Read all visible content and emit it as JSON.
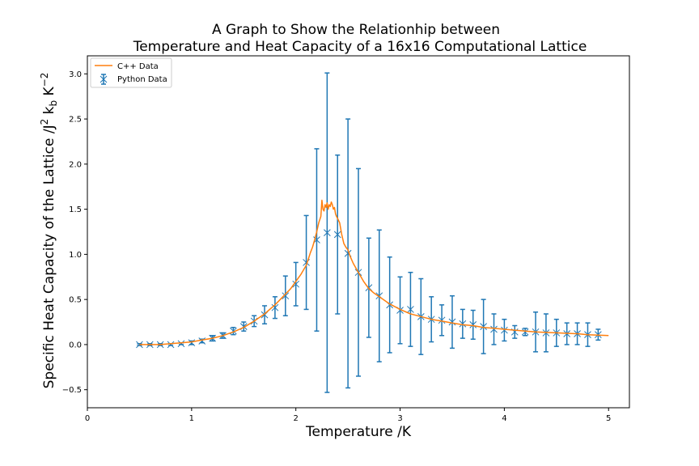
{
  "chart_data": {
    "type": "line",
    "title_lines": [
      "A Graph to Show the Relationhip between",
      "Temperature and Heat Capacity of a 16x16 Computational Lattice"
    ],
    "xlabel": "Temperature /K",
    "ylabel": "Specific Heat Capacity of the Lattice /J² k_b K⁻²",
    "ylabel_parts": {
      "base": "Specific Heat Capacity of the Lattice /J",
      "sup1": "2",
      "mid": " k",
      "sub": "b",
      "mid2": " K",
      "sup2": "−2"
    },
    "xlim": [
      0,
      5.2
    ],
    "ylim": [
      -0.7,
      3.2
    ],
    "xticks": [
      0,
      1,
      2,
      3,
      4,
      5
    ],
    "xtick_labels": [
      "0",
      "1",
      "2",
      "3",
      "4",
      "5"
    ],
    "yticks": [
      -0.5,
      0.0,
      0.5,
      1.0,
      1.5,
      2.0,
      2.5,
      3.0
    ],
    "ytick_labels": [
      "−0.5",
      "0.0",
      "0.5",
      "1.0",
      "1.5",
      "2.0",
      "2.5",
      "3.0"
    ],
    "grid": false,
    "legend_position": "top-left",
    "series": [
      {
        "name": "C++ Data",
        "kind": "line",
        "color": "#ff7f0e",
        "x": [
          0.5,
          0.6,
          0.7,
          0.8,
          0.9,
          1.0,
          1.1,
          1.2,
          1.3,
          1.4,
          1.5,
          1.6,
          1.7,
          1.8,
          1.85,
          1.9,
          1.95,
          2.0,
          2.05,
          2.1,
          2.12,
          2.14,
          2.16,
          2.18,
          2.2,
          2.22,
          2.24,
          2.25,
          2.26,
          2.27,
          2.28,
          2.29,
          2.3,
          2.31,
          2.32,
          2.33,
          2.34,
          2.35,
          2.36,
          2.37,
          2.38,
          2.39,
          2.4,
          2.42,
          2.44,
          2.46,
          2.48,
          2.5,
          2.52,
          2.55,
          2.6,
          2.65,
          2.7,
          2.75,
          2.8,
          2.9,
          3.0,
          3.1,
          3.2,
          3.3,
          3.4,
          3.5,
          3.6,
          3.7,
          3.8,
          3.9,
          4.0,
          4.1,
          4.2,
          4.3,
          4.4,
          4.5,
          4.6,
          4.7,
          4.8,
          4.9,
          5.0
        ],
        "y": [
          0.0,
          0.0,
          0.0,
          0.01,
          0.02,
          0.03,
          0.05,
          0.07,
          0.1,
          0.14,
          0.19,
          0.26,
          0.34,
          0.44,
          0.5,
          0.56,
          0.62,
          0.7,
          0.78,
          0.88,
          0.95,
          1.02,
          1.08,
          1.16,
          1.25,
          1.35,
          1.42,
          1.6,
          1.5,
          1.48,
          1.55,
          1.52,
          1.57,
          1.5,
          1.55,
          1.53,
          1.58,
          1.55,
          1.5,
          1.52,
          1.45,
          1.42,
          1.4,
          1.35,
          1.22,
          1.12,
          1.08,
          1.05,
          0.98,
          0.9,
          0.8,
          0.7,
          0.62,
          0.57,
          0.53,
          0.45,
          0.39,
          0.34,
          0.31,
          0.28,
          0.26,
          0.24,
          0.22,
          0.21,
          0.19,
          0.18,
          0.17,
          0.16,
          0.15,
          0.14,
          0.135,
          0.13,
          0.125,
          0.12,
          0.11,
          0.105,
          0.1
        ]
      },
      {
        "name": "Python Data",
        "kind": "errorbar",
        "color": "#1f77b4",
        "x": [
          0.5,
          0.6,
          0.7,
          0.8,
          0.9,
          1.0,
          1.1,
          1.2,
          1.3,
          1.4,
          1.5,
          1.6,
          1.7,
          1.8,
          1.9,
          2.0,
          2.1,
          2.2,
          2.3,
          2.4,
          2.5,
          2.6,
          2.7,
          2.8,
          2.9,
          3.0,
          3.1,
          3.2,
          3.3,
          3.4,
          3.5,
          3.6,
          3.7,
          3.8,
          3.9,
          4.0,
          4.1,
          4.2,
          4.3,
          4.4,
          4.5,
          4.6,
          4.7,
          4.8,
          4.9
        ],
        "y": [
          0.0,
          0.0,
          0.0,
          0.0,
          0.01,
          0.02,
          0.04,
          0.07,
          0.1,
          0.15,
          0.2,
          0.26,
          0.33,
          0.41,
          0.54,
          0.67,
          0.91,
          1.16,
          1.24,
          1.22,
          1.01,
          0.8,
          0.63,
          0.54,
          0.44,
          0.38,
          0.39,
          0.31,
          0.28,
          0.27,
          0.25,
          0.23,
          0.22,
          0.2,
          0.17,
          0.16,
          0.14,
          0.14,
          0.14,
          0.13,
          0.13,
          0.12,
          0.12,
          0.11,
          0.11
        ],
        "yerr": [
          0.01,
          0.01,
          0.01,
          0.01,
          0.01,
          0.02,
          0.02,
          0.03,
          0.03,
          0.04,
          0.05,
          0.06,
          0.1,
          0.12,
          0.22,
          0.24,
          0.52,
          1.01,
          1.77,
          0.88,
          1.49,
          1.15,
          0.55,
          0.73,
          0.53,
          0.37,
          0.41,
          0.42,
          0.25,
          0.17,
          0.29,
          0.16,
          0.16,
          0.3,
          0.17,
          0.12,
          0.07,
          0.04,
          0.22,
          0.21,
          0.15,
          0.12,
          0.12,
          0.13,
          0.06
        ]
      }
    ]
  }
}
